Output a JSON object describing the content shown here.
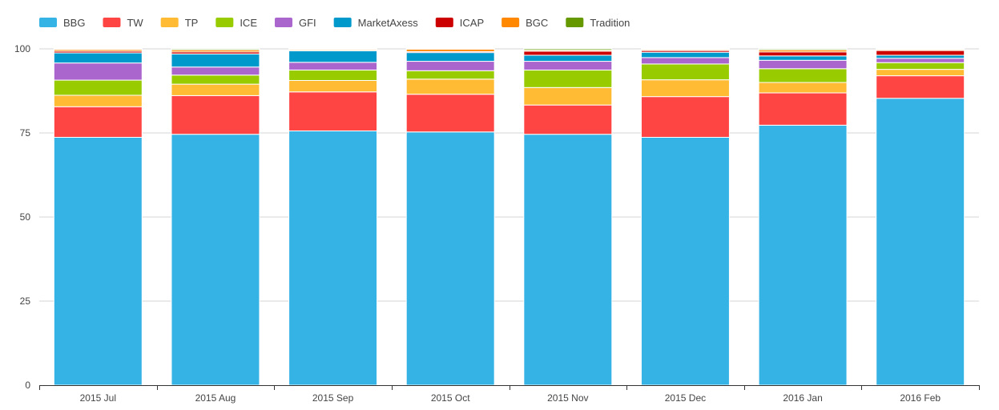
{
  "chart_data": {
    "type": "bar",
    "stacked": true,
    "categories": [
      "2015 Jul",
      "2015 Aug",
      "2015 Sep",
      "2015 Oct",
      "2015 Nov",
      "2015 Dec",
      "2016 Jan",
      "2016 Feb"
    ],
    "series": [
      {
        "name": "BBG",
        "color": "#35b3e4",
        "values": [
          73.7,
          74.6,
          75.6,
          75.3,
          74.6,
          73.7,
          77.3,
          85.3
        ]
      },
      {
        "name": "TW",
        "color": "#ff4444",
        "values": [
          9.1,
          11.5,
          11.6,
          11.2,
          8.7,
          12.1,
          9.6,
          6.7
        ]
      },
      {
        "name": "TP",
        "color": "#ffbb33",
        "values": [
          3.4,
          3.4,
          3.4,
          4.5,
          5.2,
          5.0,
          3.1,
          1.9
        ]
      },
      {
        "name": "ICE",
        "color": "#99cc00",
        "values": [
          4.5,
          2.7,
          3.1,
          2.5,
          5.2,
          4.7,
          4.1,
          2.0
        ]
      },
      {
        "name": "GFI",
        "color": "#aa66cc",
        "values": [
          5.1,
          2.4,
          2.3,
          2.8,
          2.6,
          1.9,
          2.5,
          1.3
        ]
      },
      {
        "name": "MarketAxess",
        "color": "#0099cc",
        "values": [
          3.0,
          3.9,
          3.4,
          2.6,
          1.8,
          1.6,
          1.3,
          0.9
        ]
      },
      {
        "name": "ICAP",
        "color": "#cc0000",
        "values": [
          0.5,
          0.6,
          0.2,
          0.3,
          1.2,
          0.5,
          1.2,
          1.4
        ]
      },
      {
        "name": "BGC",
        "color": "#ff8800",
        "values": [
          0.5,
          0.6,
          0.3,
          0.7,
          0.3,
          0.3,
          0.6,
          0.3
        ]
      },
      {
        "name": "Tradition",
        "color": "#669900",
        "values": [
          0.2,
          0.3,
          0.1,
          0.1,
          0.4,
          0.2,
          0.3,
          0.2
        ]
      }
    ],
    "title": "",
    "xlabel": "",
    "ylabel": "",
    "ylim": [
      0,
      100
    ],
    "yticks": [
      0,
      25,
      50,
      75,
      100
    ],
    "grid": true,
    "legend": "top-left"
  }
}
